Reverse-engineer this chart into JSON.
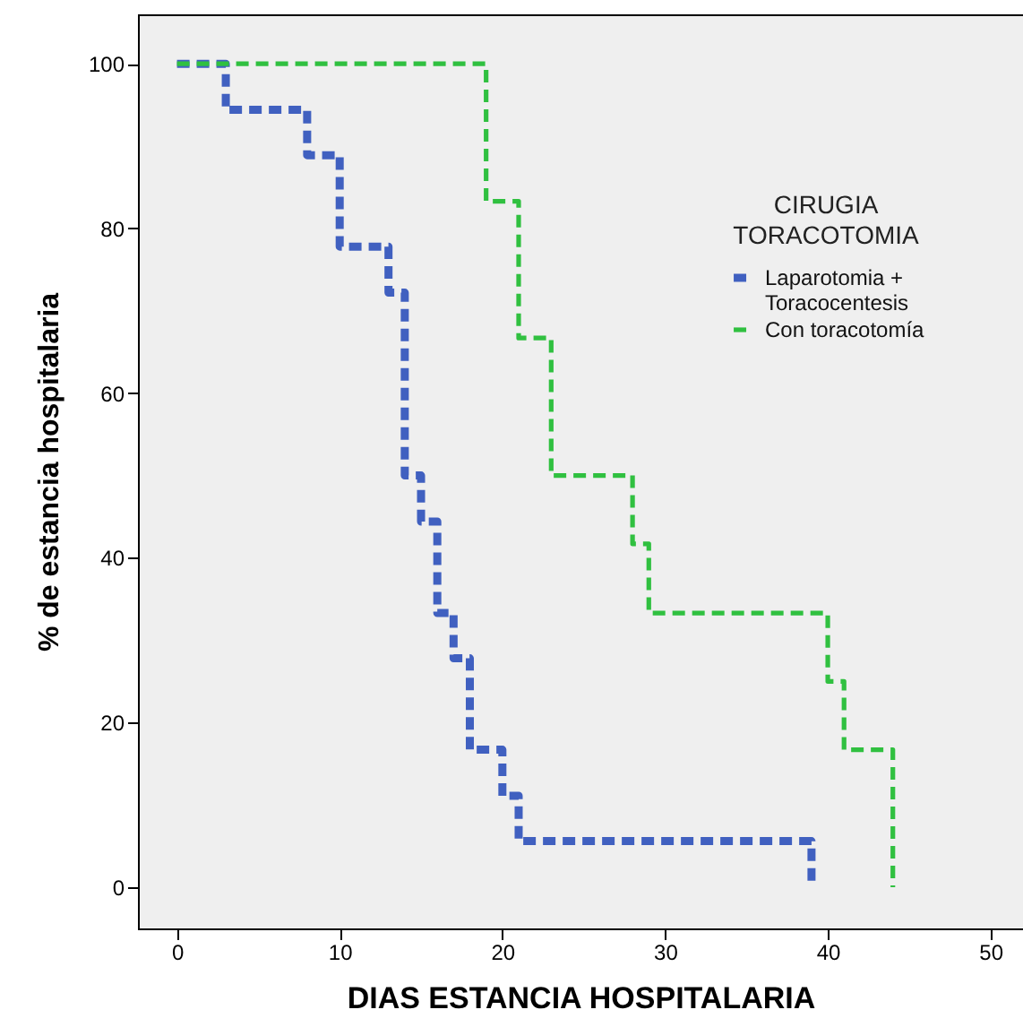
{
  "chart_data": {
    "type": "step",
    "xlabel": "DIAS ESTANCIA HOSPITALARIA",
    "ylabel": "% de estancia hospitalaria",
    "legend_title": "CIRUGIA TORACOTOMIA",
    "xlim": [
      -2.4,
      52
    ],
    "ylim": [
      -5,
      106
    ],
    "xticks": [
      0,
      10,
      20,
      30,
      40,
      50
    ],
    "yticks": [
      0,
      20,
      40,
      60,
      80,
      100
    ],
    "grid": false,
    "legend": "top right",
    "marker": "none",
    "line_style": "dashed",
    "series": [
      {
        "name": "Laparotomia + Toracocentesis",
        "color": "#4060c0",
        "x": [
          0,
          3,
          8,
          10,
          13,
          14,
          15,
          16,
          17,
          18,
          20,
          21,
          39
        ],
        "values": [
          100,
          94.4,
          88.9,
          77.8,
          72.2,
          50,
          44.4,
          33.3,
          27.8,
          16.7,
          11.1,
          5.6,
          0
        ]
      },
      {
        "name": "Con toracotomía",
        "color": "#30c040",
        "x": [
          0,
          19,
          21,
          23,
          28,
          29,
          40,
          41,
          44
        ],
        "values": [
          100,
          83.3,
          66.7,
          50,
          41.7,
          33.3,
          25,
          16.7,
          0
        ]
      }
    ]
  }
}
